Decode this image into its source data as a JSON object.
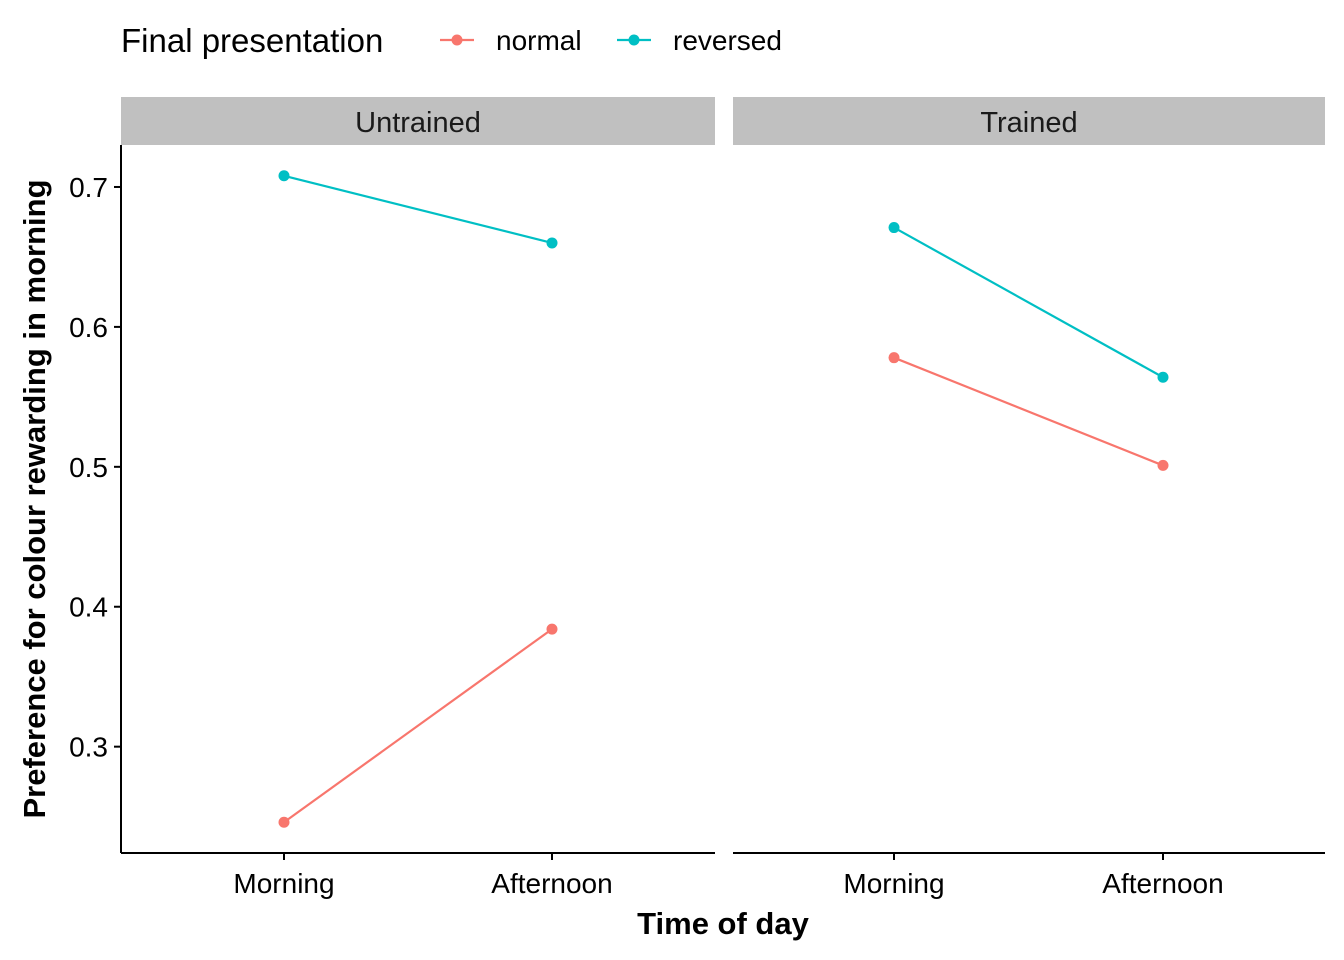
{
  "chart_data": {
    "type": "line",
    "xlabel": "Time of day",
    "ylabel": "Preference for colour rewarding in morning",
    "categories": [
      "Morning",
      "Afternoon"
    ],
    "ylim": [
      0.224,
      0.73
    ],
    "yticks": [
      0.3,
      0.4,
      0.5,
      0.6,
      0.7
    ],
    "ytick_labels": [
      "0.3",
      "0.4",
      "0.5",
      "0.6",
      "0.7"
    ],
    "legend": {
      "title": "Final presentation",
      "placement": "top",
      "entries": [
        "normal",
        "reversed"
      ]
    },
    "colors": {
      "normal": "#F8766D",
      "reversed": "#00BFC4",
      "strip_bg": "#C0C0C0"
    },
    "panels": [
      {
        "name": "Untrained",
        "series": [
          {
            "name": "normal",
            "values": [
              0.246,
              0.384
            ]
          },
          {
            "name": "reversed",
            "values": [
              0.708,
              0.66
            ]
          }
        ]
      },
      {
        "name": "Trained",
        "series": [
          {
            "name": "normal",
            "values": [
              0.578,
              0.501
            ]
          },
          {
            "name": "reversed",
            "values": [
              0.671,
              0.564
            ]
          }
        ]
      }
    ]
  }
}
